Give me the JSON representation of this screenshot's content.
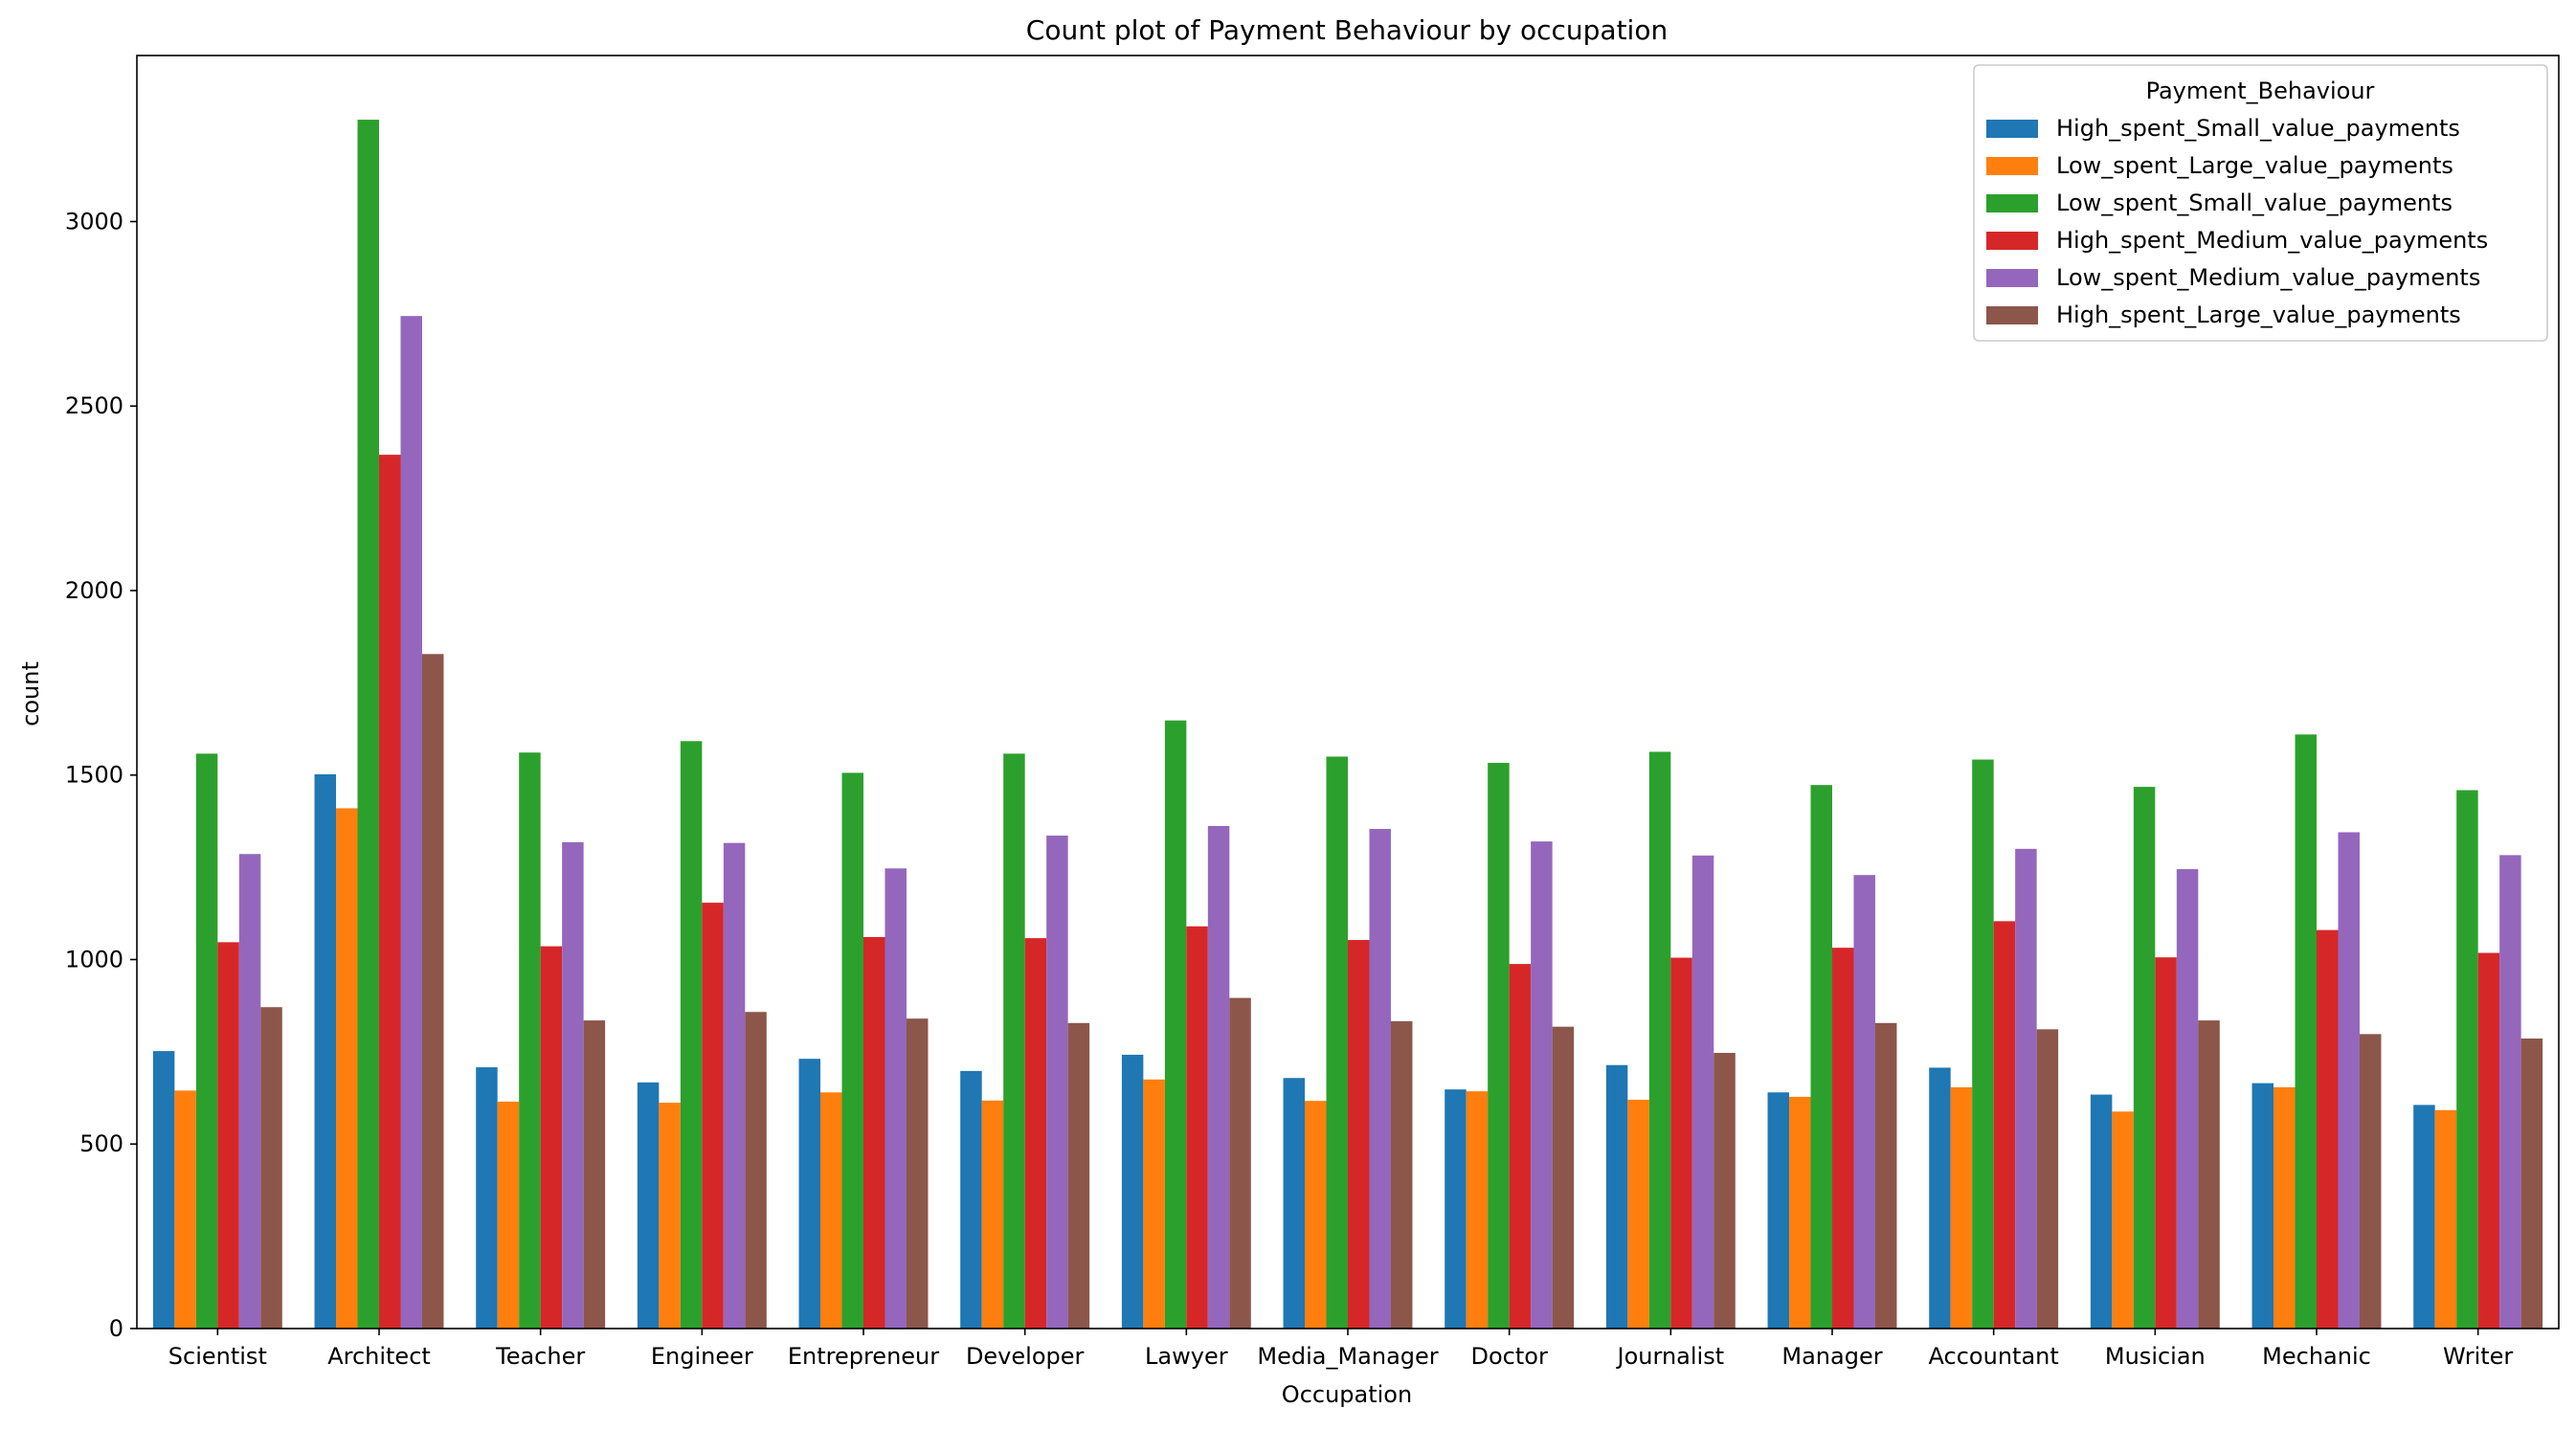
{
  "chart_data": {
    "type": "bar",
    "title": "Count plot of Payment Behaviour by occupation",
    "xlabel": "Occupation",
    "ylabel": "count",
    "ylim": [
      0,
      3450
    ],
    "yticks": [
      0,
      500,
      1000,
      1500,
      2000,
      2500,
      3000
    ],
    "grid": false,
    "legend_title": "Payment_Behaviour",
    "legend_position": "top-right",
    "categories": [
      "Scientist",
      "Architect",
      "Teacher",
      "Engineer",
      "Entrepreneur",
      "Developer",
      "Lawyer",
      "Media_Manager",
      "Doctor",
      "Journalist",
      "Manager",
      "Accountant",
      "Musician",
      "Mechanic",
      "Writer"
    ],
    "series": [
      {
        "name": "High_spent_Small_value_payments",
        "color": "#1f77b4",
        "values": [
          752,
          1502,
          708,
          667,
          731,
          698,
          742,
          679,
          648,
          714,
          640,
          707,
          634,
          665,
          606
        ]
      },
      {
        "name": "Low_spent_Large_value_payments",
        "color": "#ff7f0e",
        "values": [
          645,
          1410,
          615,
          612,
          640,
          618,
          675,
          617,
          643,
          620,
          628,
          654,
          588,
          654,
          592
        ]
      },
      {
        "name": "Low_spent_Small_value_payments",
        "color": "#2ca02c",
        "values": [
          1558,
          3276,
          1561,
          1592,
          1506,
          1558,
          1648,
          1550,
          1533,
          1563,
          1473,
          1542,
          1468,
          1610,
          1459
        ]
      },
      {
        "name": "High_spent_Medium_value_payments",
        "color": "#d62728",
        "values": [
          1047,
          2368,
          1036,
          1154,
          1061,
          1058,
          1090,
          1053,
          988,
          1005,
          1032,
          1104,
          1006,
          1080,
          1018
        ]
      },
      {
        "name": "Low_spent_Medium_value_payments",
        "color": "#9467bd",
        "values": [
          1286,
          2744,
          1318,
          1316,
          1247,
          1336,
          1362,
          1354,
          1320,
          1282,
          1229,
          1300,
          1245,
          1345,
          1283
        ]
      },
      {
        "name": "High_spent_Large_value_payments",
        "color": "#8c564b",
        "values": [
          871,
          1828,
          835,
          858,
          840,
          828,
          896,
          833,
          818,
          747,
          828,
          811,
          835,
          798,
          786
        ]
      }
    ]
  }
}
